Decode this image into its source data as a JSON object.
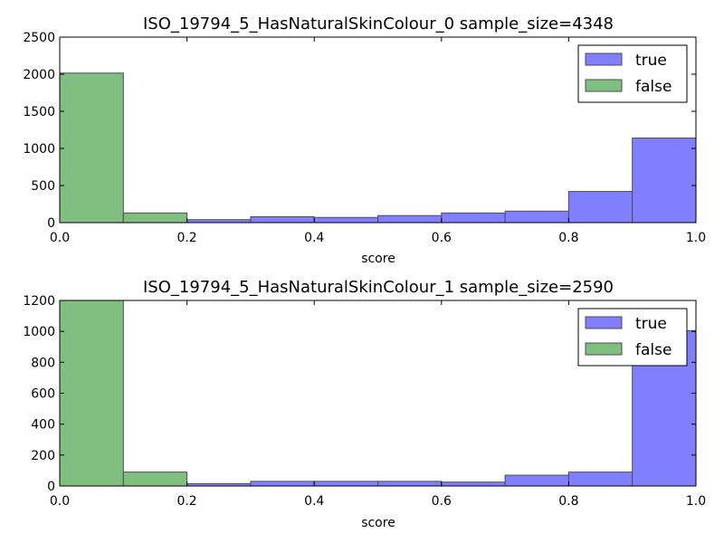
{
  "colors": {
    "true": "#7f7fff",
    "false": "#7fbf7f",
    "edge": "#4d4d4d",
    "axis": "#000000",
    "background": "#ffffff"
  },
  "chart_data": [
    {
      "type": "bar",
      "title": "ISO_19794_5_HasNaturalSkinColour_0 sample_size=4348",
      "xlabel": "score",
      "ylabel": "",
      "xlim": [
        0.0,
        1.0
      ],
      "ylim": [
        0,
        2500
      ],
      "x_ticks": [
        "0.0",
        "0.2",
        "0.4",
        "0.6",
        "0.8",
        "1.0"
      ],
      "y_ticks": [
        "0",
        "500",
        "1000",
        "1500",
        "2000",
        "2500"
      ],
      "legend": [
        "true",
        "false"
      ],
      "legend_position": "top-right",
      "grid": false,
      "bin_edges": [
        0.0,
        0.1,
        0.2,
        0.3,
        0.4,
        0.5,
        0.6,
        0.7,
        0.8,
        0.9,
        1.0
      ],
      "series": [
        {
          "name": "true",
          "values": [
            0,
            0,
            40,
            80,
            70,
            95,
            130,
            155,
            420,
            1140
          ]
        },
        {
          "name": "false",
          "values": [
            2015,
            130,
            0,
            0,
            0,
            0,
            0,
            0,
            0,
            0
          ]
        }
      ]
    },
    {
      "type": "bar",
      "title": "ISO_19794_5_HasNaturalSkinColour_1 sample_size=2590",
      "xlabel": "score",
      "ylabel": "",
      "xlim": [
        0.0,
        1.0
      ],
      "ylim": [
        0,
        1200
      ],
      "x_ticks": [
        "0.0",
        "0.2",
        "0.4",
        "0.6",
        "0.8",
        "1.0"
      ],
      "y_ticks": [
        "0",
        "200",
        "400",
        "600",
        "800",
        "1000",
        "1200"
      ],
      "legend": [
        "true",
        "false"
      ],
      "legend_position": "top-right",
      "grid": false,
      "bin_edges": [
        0.0,
        0.1,
        0.2,
        0.3,
        0.4,
        0.5,
        0.6,
        0.7,
        0.8,
        0.9,
        1.0
      ],
      "series": [
        {
          "name": "true",
          "values": [
            0,
            0,
            15,
            30,
            30,
            30,
            25,
            70,
            90,
            1005
          ]
        },
        {
          "name": "false",
          "values": [
            1290,
            90,
            0,
            0,
            0,
            0,
            0,
            0,
            0,
            0
          ]
        }
      ]
    }
  ]
}
